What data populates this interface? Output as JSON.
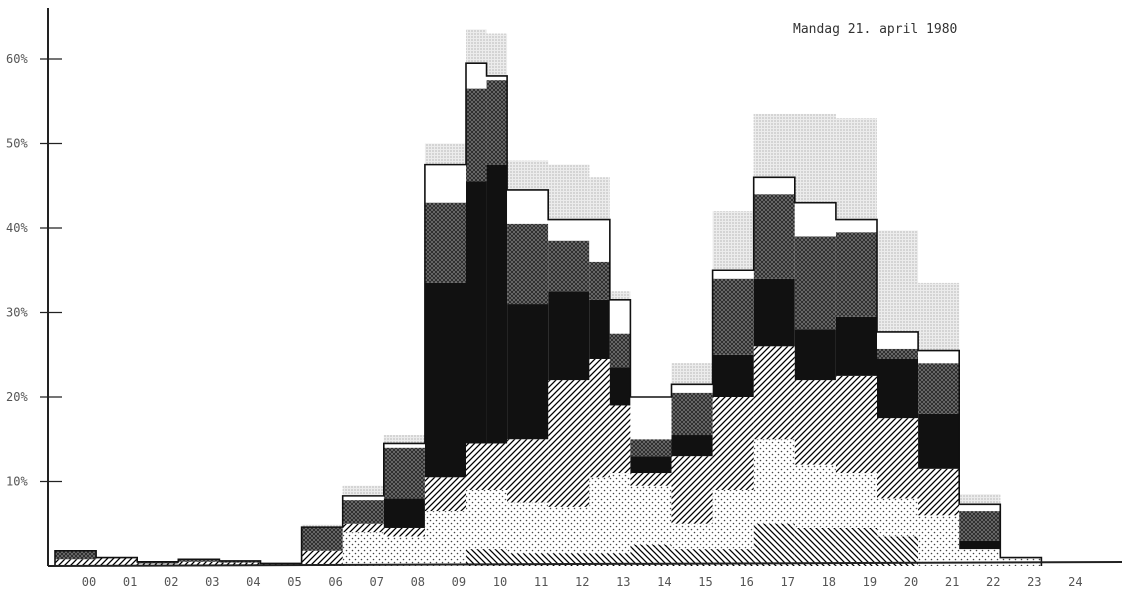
{
  "chart_data": {
    "type": "bar",
    "stacked": true,
    "title": "Mandag 21. april 1980",
    "xlabel": "",
    "ylabel": "",
    "ylim": [
      0,
      66
    ],
    "x_tick_labels": [
      "00",
      "01",
      "02",
      "03",
      "04",
      "05",
      "06",
      "07",
      "08",
      "09",
      "10",
      "11",
      "12",
      "13",
      "14",
      "15",
      "16",
      "17",
      "18",
      "19",
      "20",
      "21",
      "22",
      "23",
      "24"
    ],
    "y_tick_labels": [
      "10%",
      "20%",
      "30%",
      "40%",
      "50%",
      "60%"
    ],
    "y_ticks": [
      10,
      20,
      30,
      40,
      50,
      60
    ],
    "grid": false,
    "legend": "none",
    "bar_edges": [
      0,
      1,
      2,
      3,
      4,
      5,
      6,
      7,
      8,
      9,
      10,
      10.5,
      11,
      12,
      13,
      13.5,
      14,
      15,
      16,
      17,
      18,
      19,
      20,
      21,
      22,
      23,
      24
    ],
    "series": [
      {
        "pattern": "hatch-back",
        "color": "#000000",
        "values": [
          0,
          0,
          0,
          0,
          0,
          0,
          0,
          0,
          0,
          0,
          2.0,
          2.0,
          1.5,
          1.5,
          1.5,
          1.5,
          2.5,
          2.0,
          2.0,
          5.0,
          4.5,
          4.5,
          3.5,
          0,
          0,
          0
        ]
      },
      {
        "pattern": "dots",
        "color": "#555555",
        "values": [
          0,
          0,
          0,
          0,
          0,
          0,
          0,
          4.0,
          3.5,
          6.5,
          7.0,
          7.0,
          6.0,
          5.5,
          9.0,
          9.5,
          7.0,
          3.0,
          7.0,
          10.0,
          7.5,
          6.5,
          4.5,
          6.0,
          2.0,
          1.0
        ]
      },
      {
        "pattern": "hatch-fwd",
        "color": "#000000",
        "values": [
          0.8,
          1.0,
          0.3,
          0.5,
          0.4,
          0.3,
          1.8,
          1.0,
          1.0,
          4.0,
          5.5,
          5.5,
          7.5,
          15.0,
          14.0,
          8.0,
          1.5,
          8.0,
          11.0,
          11.0,
          10.0,
          11.5,
          9.5,
          5.5,
          0,
          0
        ]
      },
      {
        "pattern": "solid",
        "color": "#111111",
        "values": [
          0,
          0,
          0,
          0,
          0,
          0,
          0,
          0,
          3.5,
          23.0,
          31.0,
          33.0,
          16.0,
          10.5,
          7.0,
          4.5,
          2.0,
          2.5,
          5.0,
          8.0,
          6.0,
          7.0,
          7.0,
          6.5,
          1.0,
          0
        ]
      },
      {
        "pattern": "crosshatch",
        "color": "#333333",
        "values": [
          1.0,
          0,
          0.2,
          0.3,
          0.2,
          0,
          2.8,
          2.8,
          6.0,
          9.5,
          11.0,
          10.0,
          9.5,
          6.0,
          4.5,
          4.0,
          2.0,
          5.0,
          9.0,
          10.0,
          11.0,
          10.0,
          1.2,
          6.0,
          3.5,
          0
        ]
      },
      {
        "pattern": "white",
        "color": "#ffffff",
        "values": [
          0,
          0,
          0,
          0,
          0,
          0,
          0,
          0.5,
          0.5,
          4.5,
          3.0,
          0.5,
          4.0,
          2.5,
          5.0,
          4.0,
          5.0,
          1.0,
          1.0,
          2.0,
          4.0,
          1.5,
          2.0,
          1.5,
          0.8,
          0
        ]
      },
      {
        "pattern": "light-dots",
        "color": "#888888",
        "values": [
          0,
          0,
          0,
          0,
          0,
          0,
          0.3,
          1.2,
          1.0,
          2.5,
          4.0,
          5.0,
          3.5,
          6.5,
          5.0,
          1.0,
          0,
          2.5,
          7.0,
          7.5,
          10.5,
          12.0,
          12.0,
          8.0,
          1.2,
          0
        ]
      }
    ]
  }
}
